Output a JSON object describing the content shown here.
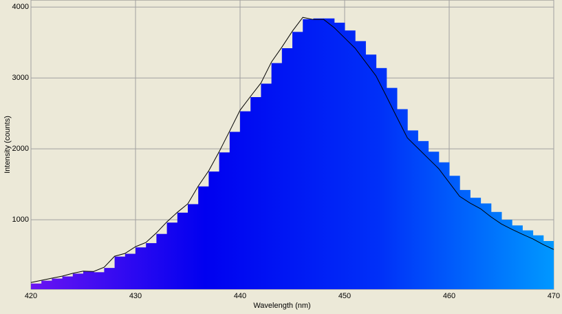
{
  "chart_data": {
    "type": "spectrum",
    "xlabel": "Wavelength (nm)",
    "ylabel": "Intensity (counts)",
    "x": [
      420,
      421,
      422,
      423,
      424,
      425,
      426,
      427,
      428,
      429,
      430,
      431,
      432,
      433,
      434,
      435,
      436,
      437,
      438,
      439,
      440,
      441,
      442,
      443,
      444,
      445,
      446,
      447,
      448,
      449,
      450,
      451,
      452,
      453,
      454,
      455,
      456,
      457,
      458,
      459,
      460,
      461,
      462,
      463,
      464,
      465,
      466,
      467,
      468,
      469,
      470
    ],
    "series": [
      {
        "colors": [
          "#6a14f2",
          "#0000f0",
          "#0030f8",
          "#0098ff"
        ],
        "values": [
          100,
          140,
          170,
          200,
          240,
          270,
          260,
          320,
          480,
          520,
          610,
          670,
          800,
          960,
          1100,
          1220,
          1470,
          1680,
          1950,
          2240,
          2530,
          2730,
          2920,
          3210,
          3420,
          3650,
          3830,
          3840,
          3840,
          3780,
          3670,
          3520,
          3330,
          3140,
          2860,
          2560,
          2260,
          2110,
          1960,
          1810,
          1620,
          1420,
          1310,
          1230,
          1110,
          1000,
          920,
          850,
          780,
          700,
          640
        ]
      },
      {
        "color": "#000000",
        "values": [
          115,
          145,
          175,
          205,
          245,
          275,
          270,
          330,
          485,
          525,
          620,
          680,
          815,
          970,
          1105,
          1225,
          1475,
          1690,
          1960,
          2250,
          2545,
          2740,
          2930,
          3225,
          3435,
          3660,
          3855,
          3825,
          3825,
          3710,
          3565,
          3420,
          3225,
          3030,
          2740,
          2445,
          2155,
          2010,
          1865,
          1720,
          1525,
          1330,
          1235,
          1155,
          1040,
          940,
          865,
          795,
          730,
          650,
          580
        ]
      }
    ],
    "xlim": [
      420,
      470
    ],
    "ylim": [
      20,
      4100
    ],
    "xticks": [
      420,
      430,
      440,
      450,
      460,
      470
    ],
    "yticks": [
      1000,
      2000,
      3000,
      4000
    ],
    "grid": true
  }
}
